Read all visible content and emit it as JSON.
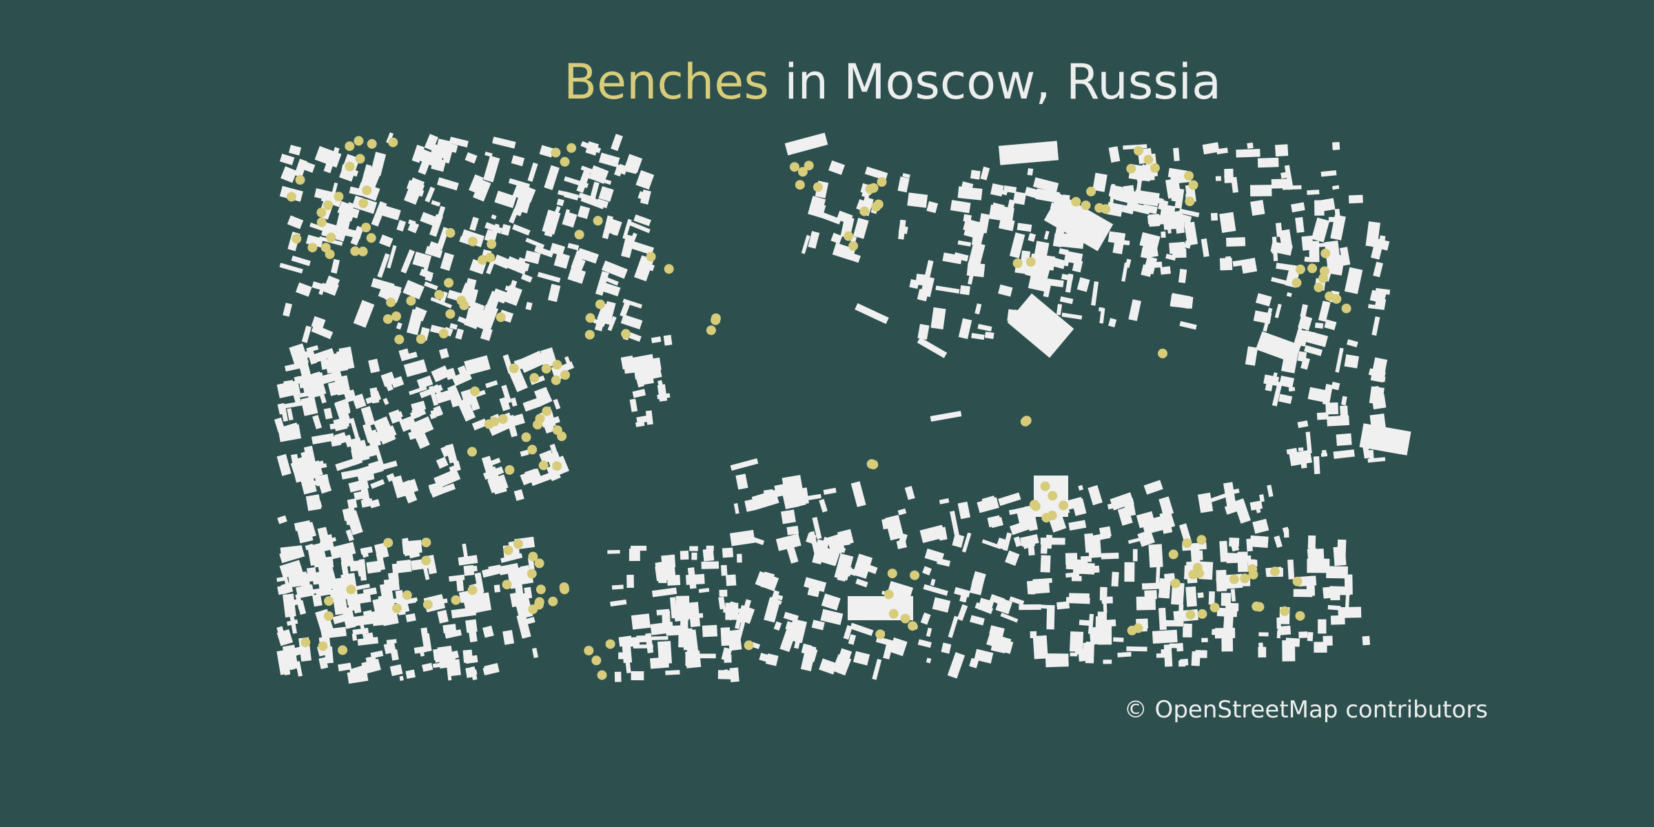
{
  "title": {
    "highlight": "Benches",
    "rest": "in Moscow, Russia"
  },
  "credit": "© OpenStreetMap contributors",
  "colors": {
    "background": "#2d4f4d",
    "buildings": "#f0f0f0",
    "benches": "#d7cc7a",
    "text": "#ecefee"
  }
}
